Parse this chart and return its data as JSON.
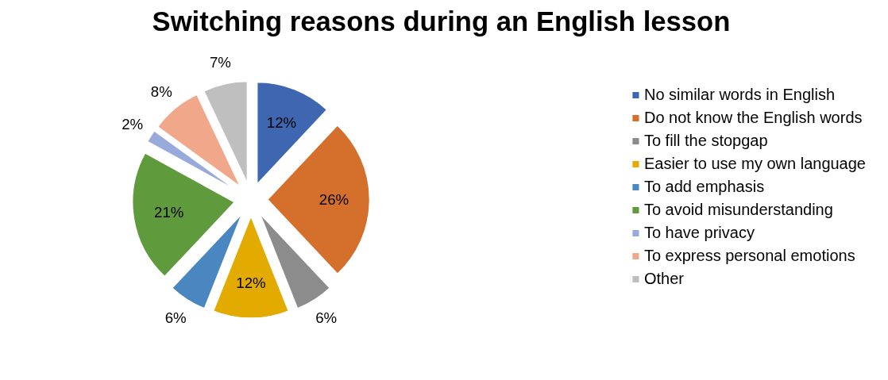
{
  "chart_data": {
    "type": "pie",
    "title": "Switching reasons during an English lesson",
    "categories": [
      "No similar words in English",
      "Do not know the English words",
      "To fill the stopgap",
      "Easier to use my own language",
      "To add emphasis",
      "To avoid misunderstanding",
      "To have privacy",
      "To express personal emotions",
      "Other"
    ],
    "values": [
      12,
      26,
      6,
      12,
      6,
      21,
      2,
      8,
      7
    ],
    "value_labels": [
      "12%",
      "26%",
      "6%",
      "12%",
      "6%",
      "21%",
      "2%",
      "8%",
      "7%"
    ],
    "colors": [
      "#3f67b1",
      "#d46f2c",
      "#8c8c8c",
      "#e3aa00",
      "#4a86c0",
      "#5f9a3c",
      "#98a9db",
      "#f0a78a",
      "#bfbfbf"
    ],
    "legend": "right"
  }
}
